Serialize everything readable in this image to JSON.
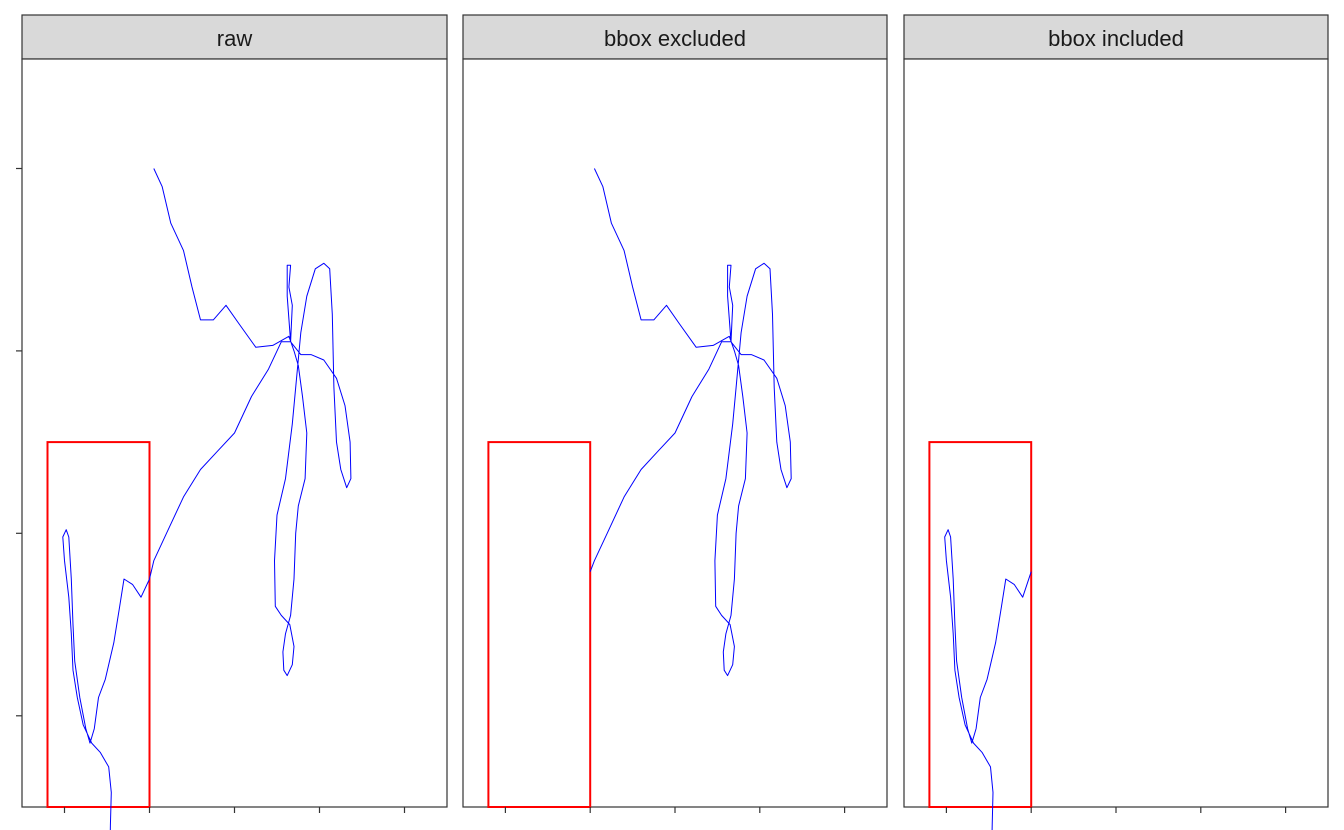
{
  "chart_data": {
    "type": "line",
    "title": "",
    "xlabel": "",
    "ylabel": "",
    "xlim": [
      -0.5,
      4.5
    ],
    "ylim": [
      -0.5,
      3.6
    ],
    "x_ticks": [
      0,
      1,
      2,
      3,
      4
    ],
    "y_ticks": [
      0,
      1,
      2,
      3
    ],
    "x_tick_labels": [],
    "y_tick_labels": [],
    "grid": false,
    "legend": "none",
    "colors": {
      "track": "#0000ff",
      "bbox": "#ff0000",
      "strip_fill": "#d9d9d9",
      "panel_border": "#333333"
    },
    "panels": [
      {
        "title": "raw",
        "track_segments": [
          [
            [
              1.05,
              3.0
            ],
            [
              1.15,
              2.9
            ],
            [
              1.25,
              2.7
            ],
            [
              1.4,
              2.55
            ],
            [
              1.5,
              2.35
            ],
            [
              1.6,
              2.17
            ],
            [
              1.75,
              2.17
            ],
            [
              1.9,
              2.25
            ],
            [
              2.05,
              2.15
            ],
            [
              2.25,
              2.02
            ],
            [
              2.45,
              2.03
            ],
            [
              2.64,
              2.08
            ],
            [
              2.7,
              2.0
            ],
            [
              2.75,
              1.92
            ],
            [
              2.8,
              1.75
            ],
            [
              2.85,
              1.55
            ],
            [
              2.83,
              1.3
            ],
            [
              2.75,
              1.15
            ],
            [
              2.72,
              1.0
            ],
            [
              2.7,
              0.75
            ],
            [
              2.66,
              0.55
            ],
            [
              2.6,
              0.45
            ],
            [
              2.57,
              0.35
            ],
            [
              2.58,
              0.25
            ],
            [
              2.62,
              0.22
            ],
            [
              2.68,
              0.28
            ],
            [
              2.7,
              0.38
            ],
            [
              2.65,
              0.5
            ],
            [
              2.55,
              0.55
            ],
            [
              2.48,
              0.6
            ],
            [
              2.47,
              0.85
            ],
            [
              2.5,
              1.1
            ],
            [
              2.6,
              1.3
            ],
            [
              2.68,
              1.6
            ],
            [
              2.72,
              1.8
            ],
            [
              2.78,
              2.1
            ],
            [
              2.85,
              2.3
            ],
            [
              2.95,
              2.45
            ],
            [
              3.05,
              2.48
            ],
            [
              3.12,
              2.45
            ],
            [
              3.15,
              2.2
            ],
            [
              3.17,
              1.8
            ],
            [
              3.2,
              1.5
            ],
            [
              3.25,
              1.35
            ],
            [
              3.32,
              1.25
            ],
            [
              3.37,
              1.3
            ],
            [
              3.36,
              1.5
            ],
            [
              3.3,
              1.7
            ],
            [
              3.2,
              1.85
            ],
            [
              3.05,
              1.95
            ],
            [
              2.9,
              1.98
            ],
            [
              2.78,
              1.98
            ],
            [
              2.66,
              2.05
            ],
            [
              2.62,
              2.3
            ],
            [
              2.62,
              2.47
            ],
            [
              2.66,
              2.47
            ],
            [
              2.64,
              2.35
            ],
            [
              2.68,
              2.25
            ],
            [
              2.66,
              2.05
            ],
            [
              2.55,
              2.05
            ],
            [
              2.4,
              1.9
            ],
            [
              2.2,
              1.75
            ],
            [
              2.0,
              1.55
            ],
            [
              1.8,
              1.45
            ],
            [
              1.6,
              1.35
            ],
            [
              1.4,
              1.2
            ],
            [
              1.2,
              1.0
            ],
            [
              1.05,
              0.85
            ],
            [
              1.0,
              0.75
            ],
            [
              0.9,
              0.65
            ],
            [
              0.8,
              0.72
            ],
            [
              0.7,
              0.75
            ],
            [
              0.65,
              0.6
            ],
            [
              0.58,
              0.4
            ],
            [
              0.48,
              0.2
            ],
            [
              0.4,
              0.1
            ],
            [
              0.35,
              -0.07
            ],
            [
              0.3,
              -0.15
            ],
            [
              0.25,
              -0.07
            ],
            [
              0.18,
              0.1
            ],
            [
              0.12,
              0.3
            ],
            [
              0.1,
              0.5
            ],
            [
              0.08,
              0.75
            ],
            [
              0.05,
              0.98
            ],
            [
              0.02,
              1.02
            ],
            [
              -0.02,
              0.98
            ],
            [
              0.0,
              0.85
            ],
            [
              0.05,
              0.65
            ],
            [
              0.08,
              0.45
            ],
            [
              0.1,
              0.25
            ],
            [
              0.15,
              0.1
            ],
            [
              0.22,
              -0.05
            ],
            [
              0.32,
              -0.15
            ],
            [
              0.42,
              -0.2
            ],
            [
              0.52,
              -0.28
            ],
            [
              0.55,
              -0.42
            ],
            [
              0.54,
              -0.6
            ],
            [
              0.53,
              -0.85
            ]
          ]
        ],
        "show_bbox": true
      },
      {
        "title": "bbox excluded",
        "track_segments": [
          [
            [
              1.05,
              3.0
            ],
            [
              1.15,
              2.9
            ],
            [
              1.25,
              2.7
            ],
            [
              1.4,
              2.55
            ],
            [
              1.5,
              2.35
            ],
            [
              1.6,
              2.17
            ],
            [
              1.75,
              2.17
            ],
            [
              1.9,
              2.25
            ],
            [
              2.05,
              2.15
            ],
            [
              2.25,
              2.02
            ],
            [
              2.45,
              2.03
            ],
            [
              2.64,
              2.08
            ],
            [
              2.7,
              2.0
            ],
            [
              2.75,
              1.92
            ],
            [
              2.8,
              1.75
            ],
            [
              2.85,
              1.55
            ],
            [
              2.83,
              1.3
            ],
            [
              2.75,
              1.15
            ],
            [
              2.72,
              1.0
            ],
            [
              2.7,
              0.75
            ],
            [
              2.66,
              0.55
            ],
            [
              2.6,
              0.45
            ],
            [
              2.57,
              0.35
            ],
            [
              2.58,
              0.25
            ],
            [
              2.62,
              0.22
            ],
            [
              2.68,
              0.28
            ],
            [
              2.7,
              0.38
            ],
            [
              2.65,
              0.5
            ],
            [
              2.55,
              0.55
            ],
            [
              2.48,
              0.6
            ],
            [
              2.47,
              0.85
            ],
            [
              2.5,
              1.1
            ],
            [
              2.6,
              1.3
            ],
            [
              2.68,
              1.6
            ],
            [
              2.72,
              1.8
            ],
            [
              2.78,
              2.1
            ],
            [
              2.85,
              2.3
            ],
            [
              2.95,
              2.45
            ],
            [
              3.05,
              2.48
            ],
            [
              3.12,
              2.45
            ],
            [
              3.15,
              2.2
            ],
            [
              3.17,
              1.8
            ],
            [
              3.2,
              1.5
            ],
            [
              3.25,
              1.35
            ],
            [
              3.32,
              1.25
            ],
            [
              3.37,
              1.3
            ],
            [
              3.36,
              1.5
            ],
            [
              3.3,
              1.7
            ],
            [
              3.2,
              1.85
            ],
            [
              3.05,
              1.95
            ],
            [
              2.9,
              1.98
            ],
            [
              2.78,
              1.98
            ],
            [
              2.66,
              2.05
            ],
            [
              2.62,
              2.3
            ],
            [
              2.62,
              2.47
            ],
            [
              2.66,
              2.47
            ],
            [
              2.64,
              2.35
            ],
            [
              2.68,
              2.25
            ],
            [
              2.66,
              2.05
            ],
            [
              2.55,
              2.05
            ],
            [
              2.4,
              1.9
            ],
            [
              2.2,
              1.75
            ],
            [
              2.0,
              1.55
            ],
            [
              1.8,
              1.45
            ],
            [
              1.6,
              1.35
            ],
            [
              1.4,
              1.2
            ],
            [
              1.2,
              1.0
            ],
            [
              1.05,
              0.85
            ],
            [
              1.0,
              0.79
            ]
          ]
        ],
        "show_bbox": true
      },
      {
        "title": "bbox included",
        "track_segments": [
          [
            [
              1.0,
              0.79
            ],
            [
              0.9,
              0.65
            ],
            [
              0.8,
              0.72
            ],
            [
              0.7,
              0.75
            ],
            [
              0.65,
              0.6
            ],
            [
              0.58,
              0.4
            ],
            [
              0.48,
              0.2
            ],
            [
              0.4,
              0.1
            ],
            [
              0.35,
              -0.07
            ],
            [
              0.3,
              -0.15
            ],
            [
              0.25,
              -0.07
            ],
            [
              0.18,
              0.1
            ],
            [
              0.12,
              0.3
            ],
            [
              0.1,
              0.5
            ],
            [
              0.08,
              0.75
            ],
            [
              0.05,
              0.98
            ],
            [
              0.02,
              1.02
            ],
            [
              -0.02,
              0.98
            ],
            [
              0.0,
              0.85
            ],
            [
              0.05,
              0.65
            ],
            [
              0.08,
              0.45
            ],
            [
              0.1,
              0.25
            ],
            [
              0.15,
              0.1
            ],
            [
              0.22,
              -0.05
            ],
            [
              0.32,
              -0.15
            ],
            [
              0.42,
              -0.2
            ],
            [
              0.52,
              -0.28
            ],
            [
              0.55,
              -0.42
            ],
            [
              0.54,
              -0.6
            ],
            [
              0.53,
              -0.85
            ]
          ]
        ],
        "show_bbox": true
      }
    ],
    "bbox": {
      "xmin": -0.2,
      "xmax": 1.0,
      "ymin": -0.5,
      "ymax": 1.5
    }
  }
}
